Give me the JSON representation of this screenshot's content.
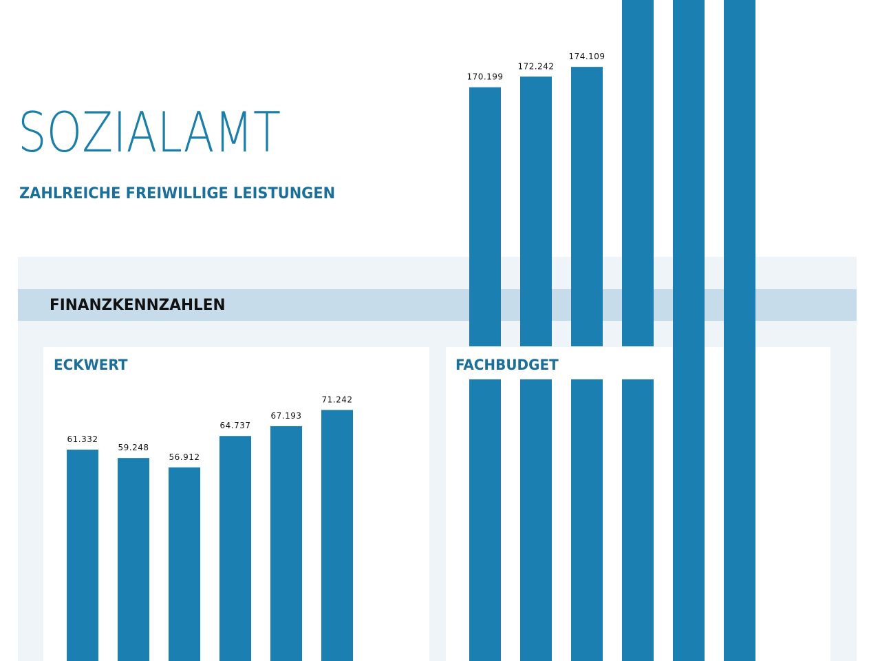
{
  "header": {
    "title": "SOZIALAMT",
    "subtitle": "ZAHLREICHE FREIWILLIGE LEISTUNGEN"
  },
  "section": {
    "title": "FINANZKENNZAHLEN"
  },
  "colors": {
    "accent": "#1b7ea8",
    "bar": "#1b80b1",
    "panel": "#eef4f8",
    "band": "#c7dceb"
  },
  "chart_data": [
    {
      "type": "bar",
      "title": "ECKWERT",
      "values": [
        61.332,
        59.248,
        56.912,
        64.737,
        67.193,
        71.242
      ],
      "labels": [
        "61.332",
        "59.248",
        "56.912",
        "64.737",
        "67.193",
        "71.242"
      ],
      "ylim": [
        0,
        75
      ]
    },
    {
      "type": "bar",
      "title": "FACHBUDGET",
      "values": [
        170.199,
        172.242,
        174.109
      ],
      "labels": [
        "170.199",
        "172.242",
        "174.109"
      ],
      "note_bars_beyond_top": 3
    }
  ]
}
